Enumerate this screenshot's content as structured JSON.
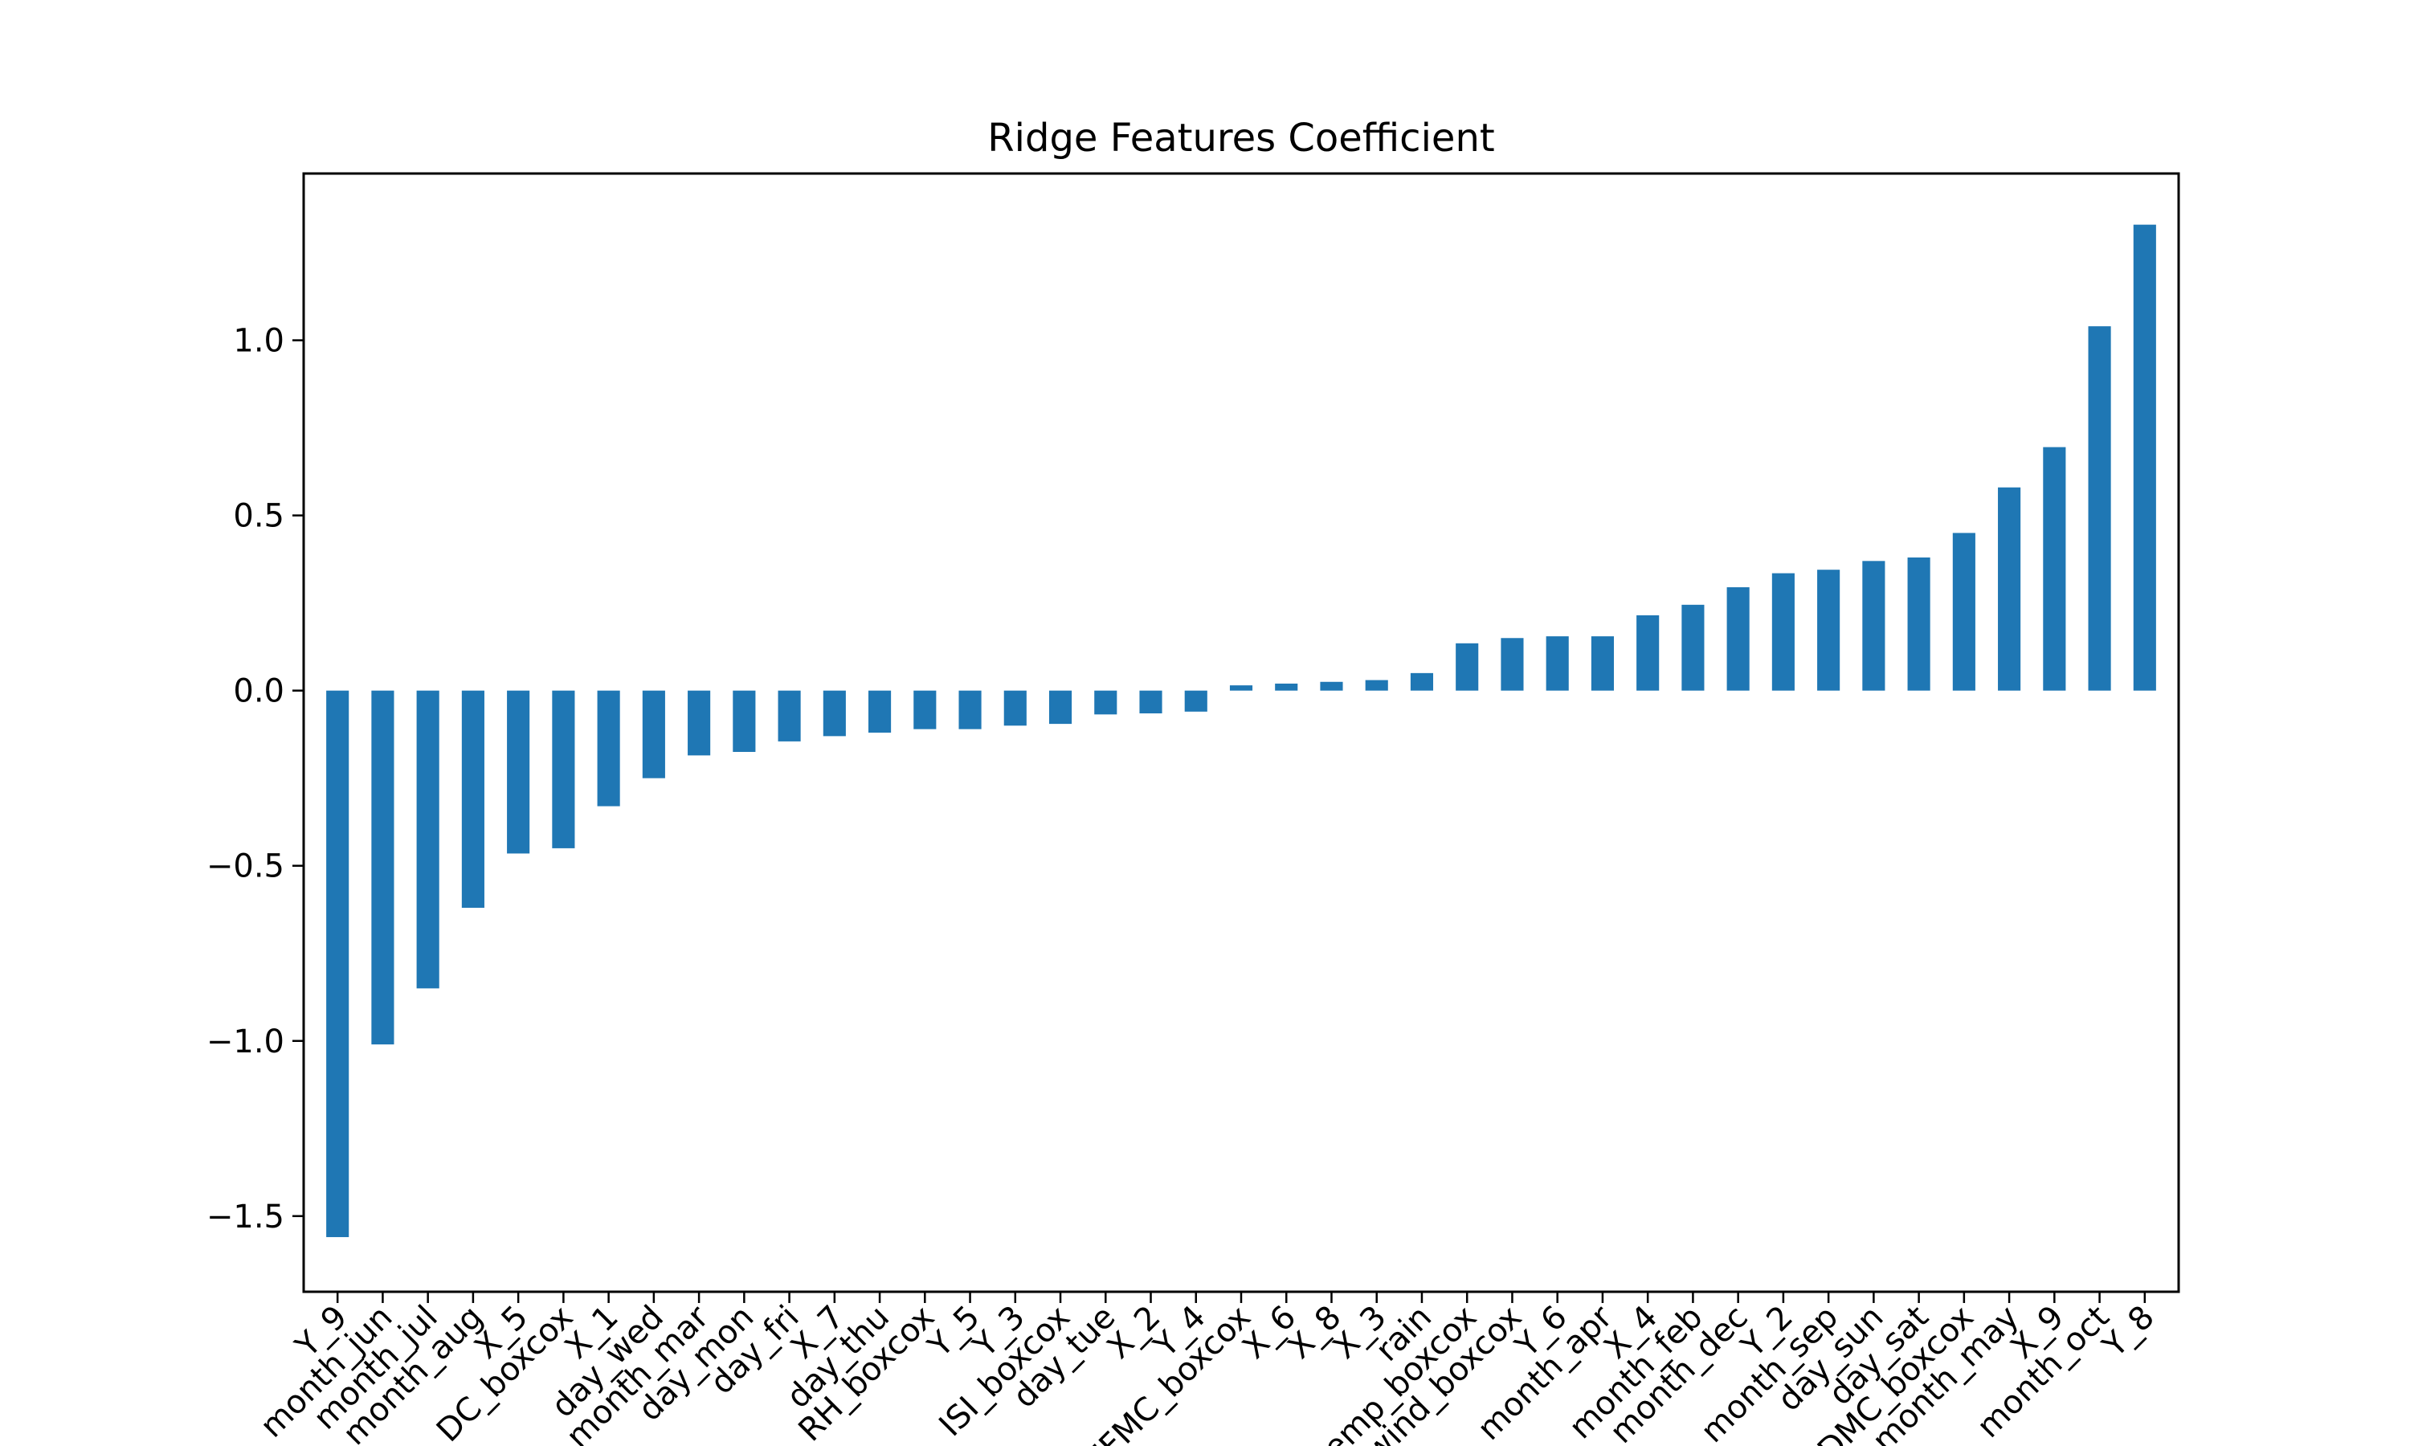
{
  "chart_data": {
    "type": "bar",
    "title": "Ridge Features Coefficient",
    "xlabel": "",
    "ylabel": "",
    "categories": [
      "Y_9",
      "month_jun",
      "month_jul",
      "month_aug",
      "X_5",
      "DC_boxcox",
      "X_1",
      "day_wed",
      "month_mar",
      "day_mon",
      "day_fri",
      "X_7",
      "day_thu",
      "RH_boxcox",
      "Y_5",
      "Y_3",
      "ISI_boxcox",
      "day_tue",
      "X_2",
      "Y_4",
      "FFMC_boxcox",
      "X_6",
      "X_8",
      "X_3",
      "rain",
      "temp_boxcox",
      "wind_boxcox",
      "Y_6",
      "month_apr",
      "X_4",
      "month_feb",
      "month_dec",
      "Y_2",
      "month_sep",
      "day_sun",
      "day_sat",
      "DMC_boxcox",
      "month_may",
      "X_9",
      "month_oct",
      "Y_8"
    ],
    "values": [
      -1.56,
      -1.01,
      -0.85,
      -0.62,
      -0.465,
      -0.45,
      -0.33,
      -0.25,
      -0.185,
      -0.175,
      -0.145,
      -0.13,
      -0.12,
      -0.11,
      -0.11,
      -0.1,
      -0.095,
      -0.068,
      -0.065,
      -0.06,
      0.015,
      0.02,
      0.025,
      0.03,
      0.05,
      0.135,
      0.15,
      0.155,
      0.155,
      0.215,
      0.245,
      0.295,
      0.335,
      0.345,
      0.37,
      0.38,
      0.45,
      0.58,
      0.695,
      1.04,
      1.33
    ],
    "yticks": [
      -1.5,
      -1.0,
      -0.5,
      0.0,
      0.5,
      1.0
    ],
    "ytick_labels": [
      "−1.5",
      "−1.0",
      "−0.5",
      "0.0",
      "0.5",
      "1.0"
    ],
    "ylim": [
      -1.716,
      1.476
    ],
    "grid": false,
    "legend": "none",
    "bar_color": "#1f77b4"
  }
}
